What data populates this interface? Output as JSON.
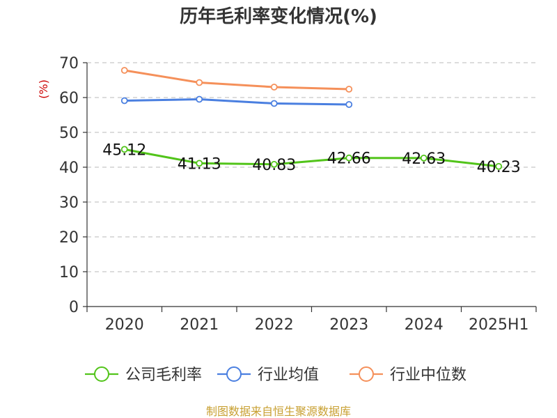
{
  "chart_data": {
    "type": "line",
    "title": "历年毛利率变化情况(%)",
    "unit_label": "(%)",
    "categories": [
      "2020",
      "2021",
      "2022",
      "2023",
      "2024",
      "2025H1"
    ],
    "ylim": [
      0,
      70
    ],
    "yticks": [
      0,
      10,
      20,
      30,
      40,
      50,
      60,
      70
    ],
    "grid": true,
    "legend_position": "bottom",
    "series": [
      {
        "name": "公司毛利率",
        "color": "#52c41a",
        "values": [
          45.12,
          41.13,
          40.83,
          42.66,
          42.63,
          40.23
        ],
        "labels": [
          "45.12",
          "41.13",
          "40.83",
          "42.66",
          "42.63",
          "40.23"
        ]
      },
      {
        "name": "行业均值",
        "color": "#4a7fe0",
        "values": [
          59.1,
          59.5,
          58.3,
          58.0,
          null,
          null
        ]
      },
      {
        "name": "行业中位数",
        "color": "#f5905a",
        "values": [
          67.8,
          64.3,
          63.0,
          62.4,
          null,
          null
        ]
      }
    ]
  },
  "source": "制图数据来自恒生聚源数据库"
}
